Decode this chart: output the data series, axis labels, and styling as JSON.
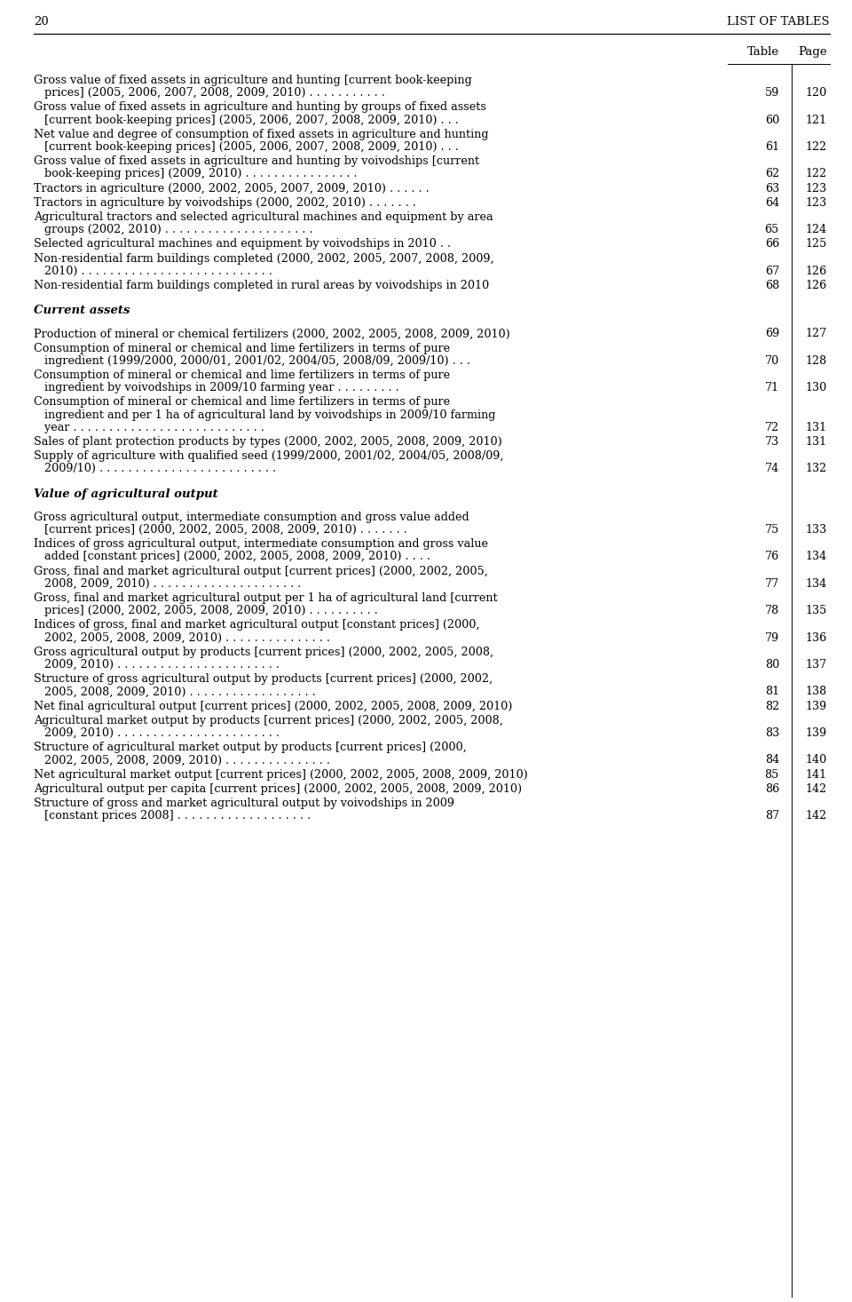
{
  "page_number": "20",
  "header_right": "LIST OF TABLES",
  "col_table": "Table",
  "col_page": "Page",
  "entries": [
    {
      "lines": [
        "Gross value of fixed assets in agriculture and hunting [current book-keeping",
        "   prices] (2005, 2006, 2007, 2008, 2009, 2010) . . . . . . . . . . ."
      ],
      "table_num": "59",
      "page_num": "120",
      "num_line": 1
    },
    {
      "lines": [
        "Gross value of fixed assets in agriculture and hunting by groups of fixed assets",
        "   [current book-keeping prices] (2005, 2006, 2007, 2008, 2009, 2010) . . ."
      ],
      "table_num": "60",
      "page_num": "121",
      "num_line": 1
    },
    {
      "lines": [
        "Net value and degree of consumption of fixed assets in agriculture and hunting",
        "   [current book-keeping prices] (2005, 2006, 2007, 2008, 2009, 2010) . . ."
      ],
      "table_num": "61",
      "page_num": "122",
      "num_line": 1
    },
    {
      "lines": [
        "Gross value of fixed assets in agriculture and hunting by voivodships [current",
        "   book-keeping prices] (2009, 2010) . . . . . . . . . . . . . . . ."
      ],
      "table_num": "62",
      "page_num": "122",
      "num_line": 1
    },
    {
      "lines": [
        "Tractors in agriculture (2000, 2002, 2005, 2007, 2009, 2010) . . . . . ."
      ],
      "table_num": "63",
      "page_num": "123",
      "num_line": 0
    },
    {
      "lines": [
        "Tractors in agriculture by voivodships (2000, 2002, 2010) . . . . . . ."
      ],
      "table_num": "64",
      "page_num": "123",
      "num_line": 0
    },
    {
      "lines": [
        "Agricultural tractors and selected agricultural machines and equipment by area",
        "   groups (2002, 2010) . . . . . . . . . . . . . . . . . . . . ."
      ],
      "table_num": "65",
      "page_num": "124",
      "num_line": 1
    },
    {
      "lines": [
        "Selected agricultural machines and equipment by voivodships in 2010 . ."
      ],
      "table_num": "66",
      "page_num": "125",
      "num_line": 0
    },
    {
      "lines": [
        "Non-residential farm buildings completed (2000, 2002, 2005, 2007, 2008, 2009,",
        "   2010) . . . . . . . . . . . . . . . . . . . . . . . . . . ."
      ],
      "table_num": "67",
      "page_num": "126",
      "num_line": 1
    },
    {
      "lines": [
        "Non-residential farm buildings completed in rural areas by voivodships in 2010"
      ],
      "table_num": "68",
      "page_num": "126",
      "num_line": 0
    },
    {
      "section": "Current assets"
    },
    {
      "lines": [
        "Production of mineral or chemical fertilizers (2000, 2002, 2005, 2008, 2009, 2010)"
      ],
      "table_num": "69",
      "page_num": "127",
      "num_line": 0
    },
    {
      "lines": [
        "Consumption of mineral or chemical and lime fertilizers in terms of pure",
        "   ingredient (1999/2000, 2000/01, 2001/02, 2004/05, 2008/09, 2009/10) . . ."
      ],
      "table_num": "70",
      "page_num": "128",
      "num_line": 1
    },
    {
      "lines": [
        "Consumption of mineral or chemical and lime fertilizers in terms of pure",
        "   ingredient by voivodships in 2009/10 farming year . . . . . . . . ."
      ],
      "table_num": "71",
      "page_num": "130",
      "num_line": 1
    },
    {
      "lines": [
        "Consumption of mineral or chemical and lime fertilizers in terms of pure",
        "   ingredient and per 1 ha of agricultural land by voivodships in 2009/10 farming",
        "   year . . . . . . . . . . . . . . . . . . . . . . . . . . ."
      ],
      "table_num": "72",
      "page_num": "131",
      "num_line": 2
    },
    {
      "lines": [
        "Sales of plant protection products by types (2000, 2002, 2005, 2008, 2009, 2010)"
      ],
      "table_num": "73",
      "page_num": "131",
      "num_line": 0
    },
    {
      "lines": [
        "Supply of agriculture with qualified seed (1999/2000, 2001/02, 2004/05, 2008/09,",
        "   2009/10) . . . . . . . . . . . . . . . . . . . . . . . . ."
      ],
      "table_num": "74",
      "page_num": "132",
      "num_line": 1
    },
    {
      "section": "Value of agricultural output"
    },
    {
      "lines": [
        "Gross agricultural output, intermediate consumption and gross value added",
        "   [current prices] (2000, 2002, 2005, 2008, 2009, 2010) . . . . . . ."
      ],
      "table_num": "75",
      "page_num": "133",
      "num_line": 1
    },
    {
      "lines": [
        "Indices of gross agricultural output, intermediate consumption and gross value",
        "   added [constant prices] (2000, 2002, 2005, 2008, 2009, 2010) . . . ."
      ],
      "table_num": "76",
      "page_num": "134",
      "num_line": 1
    },
    {
      "lines": [
        "Gross, final and market agricultural output [current prices] (2000, 2002, 2005,",
        "   2008, 2009, 2010) . . . . . . . . . . . . . . . . . . . . ."
      ],
      "table_num": "77",
      "page_num": "134",
      "num_line": 1
    },
    {
      "lines": [
        "Gross, final and market agricultural output per 1 ha of agricultural land [current",
        "   prices] (2000, 2002, 2005, 2008, 2009, 2010) . . . . . . . . . ."
      ],
      "table_num": "78",
      "page_num": "135",
      "num_line": 1
    },
    {
      "lines": [
        "Indices of gross, final and market agricultural output [constant prices] (2000,",
        "   2002, 2005, 2008, 2009, 2010) . . . . . . . . . . . . . . ."
      ],
      "table_num": "79",
      "page_num": "136",
      "num_line": 1
    },
    {
      "lines": [
        "Gross agricultural output by products [current prices] (2000, 2002, 2005, 2008,",
        "   2009, 2010) . . . . . . . . . . . . . . . . . . . . . . ."
      ],
      "table_num": "80",
      "page_num": "137",
      "num_line": 1
    },
    {
      "lines": [
        "Structure of gross agricultural output by products [current prices] (2000, 2002,",
        "   2005, 2008, 2009, 2010) . . . . . . . . . . . . . . . . . ."
      ],
      "table_num": "81",
      "page_num": "138",
      "num_line": 1
    },
    {
      "lines": [
        "Net final agricultural output [current prices] (2000, 2002, 2005, 2008, 2009, 2010)"
      ],
      "table_num": "82",
      "page_num": "139",
      "num_line": 0
    },
    {
      "lines": [
        "Agricultural market output by products [current prices] (2000, 2002, 2005, 2008,",
        "   2009, 2010) . . . . . . . . . . . . . . . . . . . . . . ."
      ],
      "table_num": "83",
      "page_num": "139",
      "num_line": 1
    },
    {
      "lines": [
        "Structure of agricultural market output by products [current prices] (2000,",
        "   2002, 2005, 2008, 2009, 2010) . . . . . . . . . . . . . . ."
      ],
      "table_num": "84",
      "page_num": "140",
      "num_line": 1
    },
    {
      "lines": [
        "Net agricultural market output [current prices] (2000, 2002, 2005, 2008, 2009, 2010)"
      ],
      "table_num": "85",
      "page_num": "141",
      "num_line": 0
    },
    {
      "lines": [
        "Agricultural output per capita [current prices] (2000, 2002, 2005, 2008, 2009, 2010)"
      ],
      "table_num": "86",
      "page_num": "142",
      "num_line": 0
    },
    {
      "lines": [
        "Structure of gross and market agricultural output by voivodships in 2009",
        "   [constant prices 2008] . . . . . . . . . . . . . . . . . . ."
      ],
      "table_num": "87",
      "page_num": "142",
      "num_line": 1
    }
  ],
  "bg_color": "#ffffff",
  "text_color": "#000000"
}
